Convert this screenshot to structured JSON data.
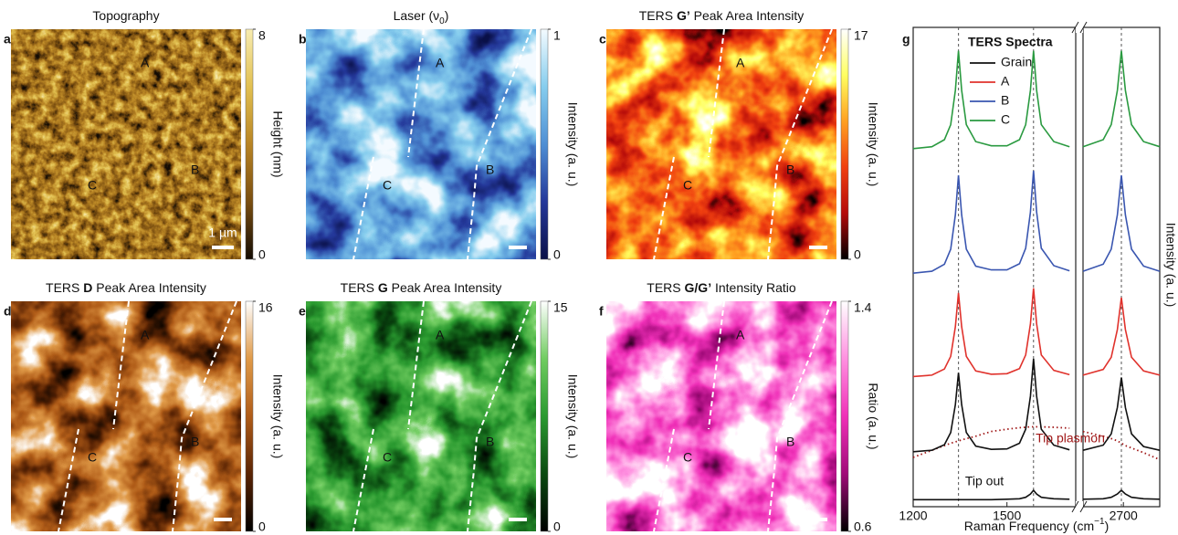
{
  "maps": [
    {
      "label": "a",
      "title": {
        "text": "Topography"
      },
      "colorbar": {
        "label": "Height (nm)",
        "lim": [
          0,
          8
        ],
        "ticks": [
          0,
          8
        ],
        "colormap": [
          "#140c04",
          "#7a4e10",
          "#b88424",
          "#e2c050",
          "#f8ecb0"
        ]
      },
      "markers": [
        "A",
        "B",
        "C"
      ],
      "scale_bar": "1 µm"
    },
    {
      "label": "b",
      "title": {
        "text": "Laser (ν",
        "sub": "0",
        "rest": ")"
      },
      "colorbar": {
        "label": "Intensity (a. u.)",
        "lim": [
          0,
          1
        ],
        "ticks": [
          0,
          1
        ],
        "colormap": [
          "#0a1048",
          "#24389a",
          "#4f8fd4",
          "#86cdee",
          "#f4fbff"
        ]
      },
      "markers": [
        "A",
        "B",
        "C"
      ]
    },
    {
      "label": "c",
      "title": {
        "text": "TERS ",
        "bold": "G’",
        "rest": " Peak Area Intensity"
      },
      "colorbar": {
        "label": "Intensity (a. u.)",
        "lim": [
          0,
          17
        ],
        "ticks": [
          0,
          17
        ],
        "colormap": [
          "#000000",
          "#b40a0a",
          "#f04010",
          "#ffa020",
          "#ffff60",
          "#ffffff"
        ]
      },
      "markers": [
        "A",
        "B",
        "C"
      ]
    },
    {
      "label": "d",
      "title": {
        "text": "TERS ",
        "bold": "D",
        "rest": " Peak Area Intensity"
      },
      "colorbar": {
        "label": "Intensity (a. u.)",
        "lim": [
          0,
          16
        ],
        "ticks": [
          0,
          16
        ],
        "colormap": [
          "#000000",
          "#5a2404",
          "#b05c18",
          "#e09a48",
          "#ffffff"
        ]
      },
      "markers": [
        "A",
        "B",
        "C"
      ]
    },
    {
      "label": "e",
      "title": {
        "text": "TERS ",
        "bold": "G",
        "rest": " Peak Area Intensity"
      },
      "colorbar": {
        "label": "Intensity (a. u.)",
        "lim": [
          0,
          15
        ],
        "ticks": [
          0,
          15
        ],
        "colormap": [
          "#000000",
          "#0a4a10",
          "#2a9a30",
          "#70cc60",
          "#ffffff"
        ]
      },
      "markers": [
        "A",
        "B",
        "C"
      ]
    },
    {
      "label": "f",
      "title": {
        "text": "TERS ",
        "bold": "G/G’",
        "rest": " Intensity Ratio"
      },
      "colorbar": {
        "label": "Ratio (a. u.)",
        "lim": [
          0.6,
          1.4
        ],
        "ticks": [
          0.6,
          1.4
        ],
        "colormap": [
          "#000000",
          "#a00a78",
          "#f030b8",
          "#ff90e0",
          "#ffffff"
        ]
      },
      "markers": [
        "A",
        "B",
        "C"
      ]
    }
  ],
  "chart_data": {
    "type": "line",
    "label": "g",
    "legend_title": "TERS Spectra",
    "ylabel": "Intensity (a. u.)",
    "xlabel": {
      "text": "Raman Frequency (cm",
      "sup": "−1",
      "rest": ")"
    },
    "xticks": [
      1200,
      1500,
      2700
    ],
    "x_segments": [
      [
        1200,
        1720
      ],
      [
        2600,
        2790
      ]
    ],
    "ylim": [
      0,
      10.2
    ],
    "reference_lines": [
      1345,
      1585,
      2695
    ],
    "x": [
      1200,
      1260,
      1300,
      1320,
      1335,
      1345,
      1355,
      1370,
      1400,
      1450,
      1500,
      1540,
      1560,
      1575,
      1585,
      1595,
      1610,
      1650,
      1700,
      2600,
      2650,
      2670,
      2685,
      2695,
      2705,
      2720,
      2750,
      2790
    ],
    "series": [
      {
        "name": "Grain",
        "color": "#111111",
        "values": [
          1.17,
          1.2,
          1.32,
          1.58,
          2.17,
          2.85,
          2.17,
          1.58,
          1.29,
          1.22,
          1.23,
          1.35,
          1.65,
          2.35,
          3.15,
          2.35,
          1.65,
          1.31,
          1.21,
          1.2,
          1.31,
          1.55,
          2.11,
          2.75,
          2.11,
          1.55,
          1.28,
          1.2
        ]
      },
      {
        "name": "A",
        "color": "#e0322c",
        "values": [
          2.77,
          2.8,
          2.93,
          3.2,
          3.83,
          4.55,
          3.83,
          3.2,
          2.89,
          2.82,
          2.83,
          2.94,
          3.23,
          3.89,
          4.65,
          3.89,
          3.23,
          2.9,
          2.81,
          2.8,
          2.92,
          3.18,
          3.77,
          4.45,
          3.77,
          3.18,
          2.89,
          2.8
        ]
      },
      {
        "name": "B",
        "color": "#3a56b0",
        "values": [
          4.97,
          5.01,
          5.16,
          5.48,
          6.21,
          7.05,
          6.21,
          5.48,
          5.12,
          5.04,
          5.04,
          5.17,
          5.5,
          6.27,
          7.15,
          6.27,
          5.5,
          5.13,
          5.02,
          5.01,
          5.16,
          5.48,
          6.21,
          7.05,
          6.21,
          5.48,
          5.12,
          5.01
        ]
      },
      {
        "name": "C",
        "color": "#2a9a40",
        "values": [
          7.62,
          7.66,
          7.81,
          8.13,
          8.86,
          9.7,
          8.86,
          8.13,
          7.77,
          7.68,
          7.68,
          7.81,
          8.13,
          8.86,
          9.7,
          8.86,
          8.13,
          7.77,
          7.66,
          7.66,
          7.81,
          8.13,
          8.86,
          9.7,
          8.86,
          8.13,
          7.77,
          7.66
        ]
      }
    ],
    "baselines": [
      {
        "name": "Tip plasmon",
        "color": "#a01818",
        "style": "dotted",
        "values": [
          1.05,
          1.2,
          1.3,
          1.35,
          1.38,
          1.4,
          1.42,
          1.45,
          1.5,
          1.6,
          1.65,
          1.68,
          1.69,
          1.7,
          1.7,
          1.7,
          1.7,
          1.69,
          1.67,
          1.6,
          1.5,
          1.45,
          1.4,
          1.35,
          1.3,
          1.25,
          1.15,
          1.0
        ]
      },
      {
        "name": "Tip out",
        "color": "#111111",
        "style": "solid",
        "values": [
          0.15,
          0.15,
          0.15,
          0.15,
          0.15,
          0.15,
          0.15,
          0.15,
          0.15,
          0.15,
          0.16,
          0.17,
          0.2,
          0.27,
          0.35,
          0.27,
          0.2,
          0.17,
          0.16,
          0.16,
          0.17,
          0.2,
          0.27,
          0.35,
          0.27,
          0.2,
          0.17,
          0.16
        ]
      }
    ]
  }
}
